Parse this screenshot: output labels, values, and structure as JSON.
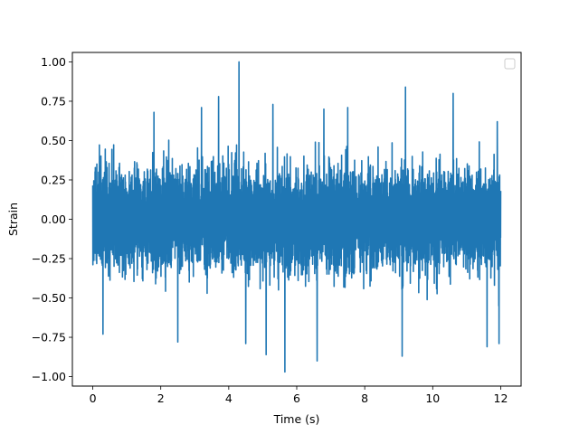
{
  "chart_data": {
    "type": "line",
    "title": "",
    "xlabel": "Time (s)",
    "ylabel": "Strain",
    "xlim": [
      -0.6,
      12.6
    ],
    "ylim": [
      -1.06,
      1.06
    ],
    "x_ticks": [
      0,
      2,
      4,
      6,
      8,
      10,
      12
    ],
    "x_tick_labels": [
      "0",
      "2",
      "4",
      "6",
      "8",
      "10",
      "12"
    ],
    "y_ticks": [
      -1.0,
      -0.75,
      -0.5,
      -0.25,
      0.0,
      0.25,
      0.5,
      0.75,
      1.0
    ],
    "y_tick_labels": [
      "−1.00",
      "−0.75",
      "−0.50",
      "−0.25",
      "0.00",
      "0.25",
      "0.50",
      "0.75",
      "1.00"
    ],
    "grid": false,
    "legend": {
      "placement": "top-right",
      "entries": []
    },
    "series": [
      {
        "color": "#1f77b4",
        "x_start": 0,
        "x_end": 12,
        "envelope": {
          "typical_amplitude": 0.45,
          "max": 1.0,
          "min": -0.97
        },
        "notable_peaks": [
          {
            "x": 4.3,
            "y": 1.0
          },
          {
            "x": 1.8,
            "y": 0.68
          },
          {
            "x": 2.5,
            "y": 0.66
          },
          {
            "x": 3.2,
            "y": 0.71
          },
          {
            "x": 3.7,
            "y": 0.78
          },
          {
            "x": 5.3,
            "y": 0.73
          },
          {
            "x": 6.8,
            "y": 0.7
          },
          {
            "x": 7.5,
            "y": 0.71
          },
          {
            "x": 9.2,
            "y": 0.84
          },
          {
            "x": 10.6,
            "y": 0.8
          },
          {
            "x": 11.9,
            "y": 0.62
          }
        ],
        "notable_troughs": [
          {
            "x": 0.3,
            "y": -0.73
          },
          {
            "x": 2.5,
            "y": -0.78
          },
          {
            "x": 4.5,
            "y": -0.79
          },
          {
            "x": 5.1,
            "y": -0.86
          },
          {
            "x": 5.65,
            "y": -0.97
          },
          {
            "x": 6.6,
            "y": -0.9
          },
          {
            "x": 9.1,
            "y": -0.87
          },
          {
            "x": 11.6,
            "y": -0.81
          },
          {
            "x": 11.95,
            "y": -0.79
          }
        ]
      }
    ]
  }
}
